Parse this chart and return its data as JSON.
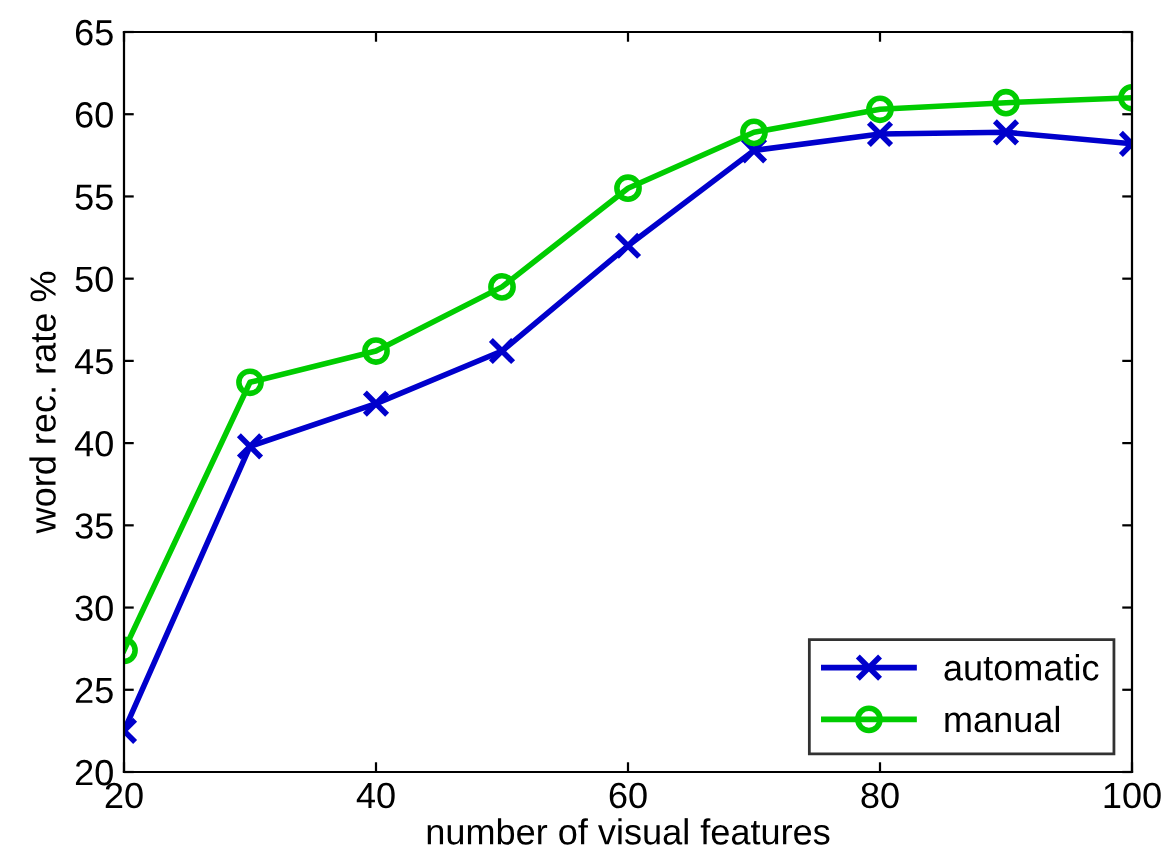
{
  "chart_data": {
    "type": "line",
    "xlabel": "number of visual features",
    "ylabel": "word rec. rate %",
    "x": [
      20,
      30,
      40,
      50,
      60,
      70,
      80,
      90,
      100
    ],
    "series": [
      {
        "name": "automatic",
        "color": "#0000cc",
        "marker": "cross",
        "values": [
          22.5,
          39.8,
          42.4,
          45.6,
          52.0,
          57.8,
          58.8,
          58.9,
          58.2
        ]
      },
      {
        "name": "manual",
        "color": "#00cc00",
        "marker": "circle",
        "values": [
          27.4,
          43.7,
          45.6,
          49.5,
          55.5,
          58.9,
          60.3,
          60.7,
          61.0
        ]
      }
    ],
    "xlim": [
      20,
      100
    ],
    "xticks": [
      20,
      40,
      60,
      80,
      100
    ],
    "ylim": [
      20,
      65
    ],
    "yticks": [
      20,
      25,
      30,
      35,
      40,
      45,
      50,
      55,
      60,
      65
    ],
    "legend": "bottom right",
    "line_style": "solid"
  }
}
